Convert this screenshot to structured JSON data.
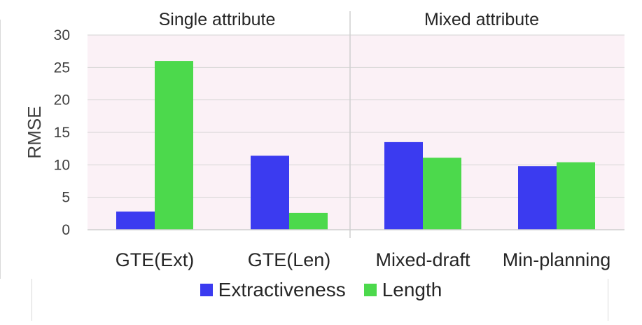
{
  "chart_data": {
    "type": "bar",
    "groups": [
      {
        "label": "Single attribute",
        "categories": [
          "GTE(Ext)",
          "GTE(Len)"
        ]
      },
      {
        "label": "Mixed attribute",
        "categories": [
          "Mixed-draft",
          "Min-planning"
        ]
      }
    ],
    "categories": [
      "GTE(Ext)",
      "GTE(Len)",
      "Mixed-draft",
      "Min-planning"
    ],
    "series": [
      {
        "name": "Extractiveness",
        "color": "#3b3bf0",
        "values": [
          2.8,
          11.4,
          13.5,
          9.8
        ]
      },
      {
        "name": "Length",
        "color": "#4cd94c",
        "values": [
          26.0,
          2.6,
          11.1,
          10.4
        ]
      }
    ],
    "ylabel": "RMSE",
    "ylim": [
      0,
      30
    ],
    "yticks": [
      0,
      5,
      10,
      15,
      20,
      25,
      30
    ],
    "grid": true,
    "plot_background": "#fbf1f6",
    "legend_position": "bottom"
  }
}
